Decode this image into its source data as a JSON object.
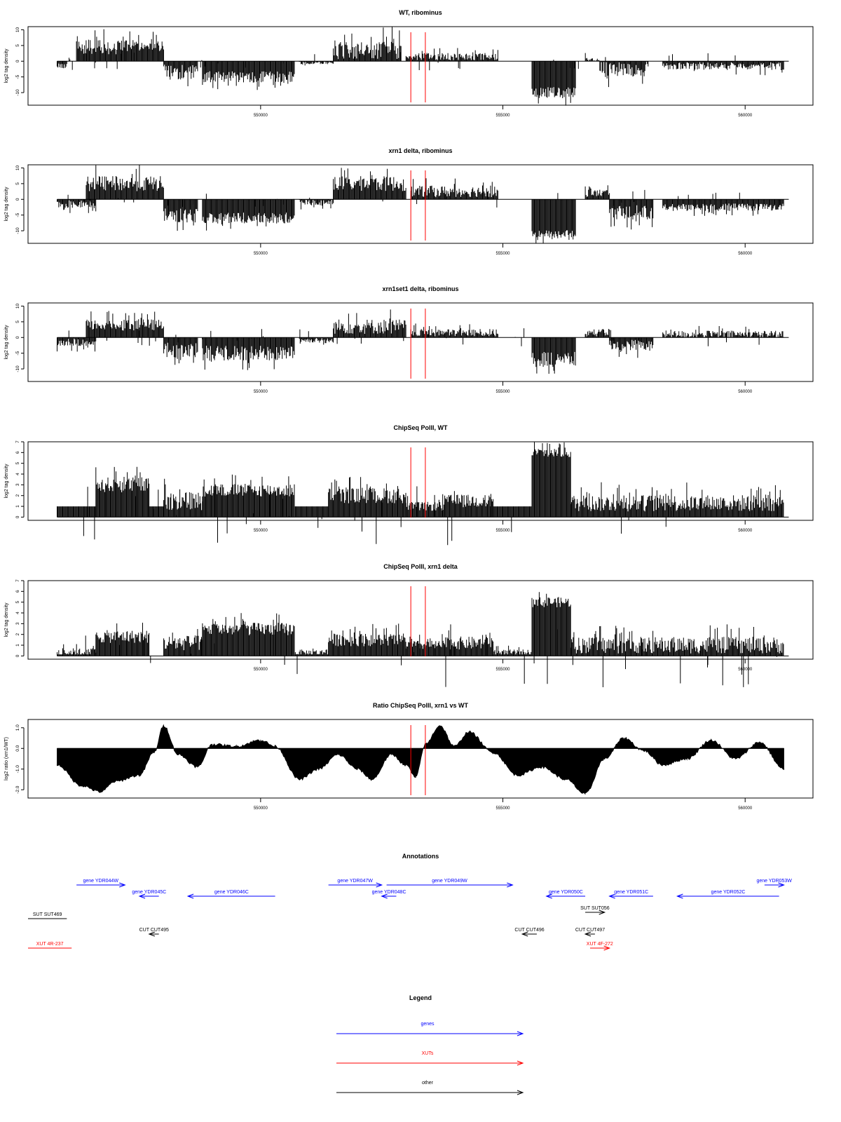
{
  "chart_data": [
    {
      "type": "bar",
      "title": "WT, ribominus",
      "ylabel": "log2 tag density",
      "xlabel": "",
      "xlim": [
        545200,
        561400
      ],
      "ylim": [
        -14,
        11
      ],
      "yticks": [
        -10,
        -5,
        0,
        5,
        10
      ],
      "xticks": [
        550000,
        555000,
        560000
      ],
      "vlines": [
        553100,
        553400
      ],
      "segments": [
        {
          "x": [
            545800,
            546000
          ],
          "sign": -1,
          "level": 1.5,
          "amp": 1.5
        },
        {
          "x": [
            546200,
            547200
          ],
          "sign": 1,
          "level": 4.5,
          "amp": 4
        },
        {
          "x": [
            547200,
            548000
          ],
          "sign": 1,
          "level": 5,
          "amp": 3
        },
        {
          "x": [
            548000,
            548700
          ],
          "sign": -1,
          "level": 3.5,
          "amp": 4
        },
        {
          "x": [
            548800,
            550700
          ],
          "sign": -1,
          "level": 5,
          "amp": 3
        },
        {
          "x": [
            550800,
            551500
          ],
          "sign": -1,
          "level": 0.5,
          "amp": 0.8
        },
        {
          "x": [
            551500,
            552900
          ],
          "sign": 1,
          "level": 3.5,
          "amp": 5
        },
        {
          "x": [
            553000,
            554900
          ],
          "sign": 1,
          "level": 1.5,
          "amp": 2
        },
        {
          "x": [
            555600,
            556500
          ],
          "sign": -1,
          "level": 10,
          "amp": 3
        },
        {
          "x": [
            556700,
            557000
          ],
          "sign": 1,
          "level": 0.5,
          "amp": 1
        },
        {
          "x": [
            557000,
            558000
          ],
          "sign": -1,
          "level": 2.5,
          "amp": 4
        },
        {
          "x": [
            558300,
            560800
          ],
          "sign": -1,
          "level": 1.5,
          "amp": 2
        }
      ]
    },
    {
      "type": "bar",
      "title": "xrn1 delta, ribominus",
      "ylabel": "log2 tag density",
      "xlabel": "",
      "xlim": [
        545200,
        561400
      ],
      "ylim": [
        -14,
        11
      ],
      "yticks": [
        -10,
        -5,
        0,
        5,
        10
      ],
      "xticks": [
        550000,
        555000,
        560000
      ],
      "vlines": [
        553100,
        553400
      ],
      "segments": [
        {
          "x": [
            545800,
            546600
          ],
          "sign": -1,
          "level": 1.5,
          "amp": 2
        },
        {
          "x": [
            546400,
            548000
          ],
          "sign": 1,
          "level": 5,
          "amp": 4
        },
        {
          "x": [
            548000,
            548700
          ],
          "sign": -1,
          "level": 5,
          "amp": 4
        },
        {
          "x": [
            548800,
            550700
          ],
          "sign": -1,
          "level": 6,
          "amp": 3
        },
        {
          "x": [
            550800,
            551500
          ],
          "sign": -1,
          "level": 1,
          "amp": 1.5
        },
        {
          "x": [
            551500,
            553000
          ],
          "sign": 1,
          "level": 5,
          "amp": 4
        },
        {
          "x": [
            553100,
            554900
          ],
          "sign": 1,
          "level": 2.5,
          "amp": 3
        },
        {
          "x": [
            555600,
            556500
          ],
          "sign": -1,
          "level": 11,
          "amp": 2
        },
        {
          "x": [
            556700,
            557200
          ],
          "sign": 1,
          "level": 2,
          "amp": 2
        },
        {
          "x": [
            557200,
            558100
          ],
          "sign": -1,
          "level": 4,
          "amp": 4
        },
        {
          "x": [
            558300,
            560800
          ],
          "sign": -1,
          "level": 2.5,
          "amp": 2
        }
      ]
    },
    {
      "type": "bar",
      "title": "xrn1set1 delta, ribominus",
      "ylabel": "log2 tag density",
      "xlabel": "",
      "xlim": [
        545200,
        561400
      ],
      "ylim": [
        -14,
        11
      ],
      "yticks": [
        -10,
        -5,
        0,
        5,
        10
      ],
      "xticks": [
        550000,
        555000,
        560000
      ],
      "vlines": [
        553100,
        553400
      ],
      "segments": [
        {
          "x": [
            545800,
            546600
          ],
          "sign": -1,
          "level": 1.5,
          "amp": 2
        },
        {
          "x": [
            546400,
            548000
          ],
          "sign": 1,
          "level": 4,
          "amp": 3
        },
        {
          "x": [
            548000,
            548700
          ],
          "sign": -1,
          "level": 4,
          "amp": 4
        },
        {
          "x": [
            548800,
            550700
          ],
          "sign": -1,
          "level": 5,
          "amp": 4
        },
        {
          "x": [
            550800,
            551500
          ],
          "sign": -1,
          "level": 1,
          "amp": 1.5
        },
        {
          "x": [
            551500,
            553000
          ],
          "sign": 1,
          "level": 3.5,
          "amp": 4
        },
        {
          "x": [
            553100,
            554900
          ],
          "sign": 1,
          "level": 1.5,
          "amp": 2
        },
        {
          "x": [
            555600,
            556500
          ],
          "sign": -1,
          "level": 7,
          "amp": 4
        },
        {
          "x": [
            556700,
            557200
          ],
          "sign": 1,
          "level": 1.5,
          "amp": 2
        },
        {
          "x": [
            557200,
            558100
          ],
          "sign": -1,
          "level": 2.5,
          "amp": 3
        },
        {
          "x": [
            558300,
            560800
          ],
          "sign": 1,
          "level": 1,
          "amp": 2
        }
      ]
    },
    {
      "type": "bar",
      "title": "ChipSeq PolII, WT",
      "ylabel": "log2 tag density",
      "xlabel": "",
      "xlim": [
        545200,
        561400
      ],
      "ylim": [
        -0.3,
        7
      ],
      "yticks": [
        0,
        1,
        2,
        3,
        4,
        5,
        6,
        7
      ],
      "xticks": [
        550000,
        555000,
        560000
      ],
      "vlines": [
        553100,
        553400
      ],
      "segments": [
        {
          "x": [
            545800,
            546600
          ],
          "sign": 1,
          "level": 1,
          "amp": 0
        },
        {
          "x": [
            546600,
            547700
          ],
          "sign": 1,
          "level": 3,
          "amp": 1.2
        },
        {
          "x": [
            547700,
            548000
          ],
          "sign": 1,
          "level": 1,
          "amp": 0
        },
        {
          "x": [
            548000,
            548800
          ],
          "sign": 1,
          "level": 1.5,
          "amp": 1.5
        },
        {
          "x": [
            548800,
            550700
          ],
          "sign": 1,
          "level": 2.5,
          "amp": 1
        },
        {
          "x": [
            550700,
            551400
          ],
          "sign": 1,
          "level": 1,
          "amp": 0
        },
        {
          "x": [
            551400,
            553000
          ],
          "sign": 1,
          "level": 2,
          "amp": 1.2
        },
        {
          "x": [
            553000,
            553800
          ],
          "sign": 1,
          "level": 1,
          "amp": 0.7
        },
        {
          "x": [
            553800,
            554800
          ],
          "sign": 1,
          "level": 1.5,
          "amp": 1
        },
        {
          "x": [
            554800,
            555600
          ],
          "sign": 1,
          "level": 1,
          "amp": 0
        },
        {
          "x": [
            555600,
            556400
          ],
          "sign": 1,
          "level": 6,
          "amp": 0.8
        },
        {
          "x": [
            556400,
            560800
          ],
          "sign": 1,
          "level": 1.3,
          "amp": 1.3
        }
      ]
    },
    {
      "type": "bar",
      "title": "ChipSeq PolII, xrn1 delta",
      "ylabel": "log2 tag density",
      "xlabel": "",
      "xlim": [
        545200,
        561400
      ],
      "ylim": [
        -0.3,
        7
      ],
      "yticks": [
        0,
        1,
        2,
        3,
        4,
        5,
        6,
        7
      ],
      "xticks": [
        550000,
        555000,
        560000
      ],
      "vlines": [
        553100,
        553400
      ],
      "segments": [
        {
          "x": [
            545800,
            546600
          ],
          "sign": 1,
          "level": 0.3,
          "amp": 0.7
        },
        {
          "x": [
            546600,
            547700
          ],
          "sign": 1,
          "level": 1.8,
          "amp": 1
        },
        {
          "x": [
            548000,
            548800
          ],
          "sign": 1,
          "level": 1.2,
          "amp": 1.2
        },
        {
          "x": [
            548800,
            550700
          ],
          "sign": 1,
          "level": 2.5,
          "amp": 1
        },
        {
          "x": [
            550700,
            551400
          ],
          "sign": 1,
          "level": 0.3,
          "amp": 0.5
        },
        {
          "x": [
            551400,
            553000
          ],
          "sign": 1,
          "level": 1.5,
          "amp": 1
        },
        {
          "x": [
            553000,
            553800
          ],
          "sign": 1,
          "level": 1,
          "amp": 0.7
        },
        {
          "x": [
            553800,
            554800
          ],
          "sign": 1,
          "level": 1.2,
          "amp": 1
        },
        {
          "x": [
            554800,
            555600
          ],
          "sign": 1,
          "level": 0.3,
          "amp": 0.5
        },
        {
          "x": [
            555600,
            556400
          ],
          "sign": 1,
          "level": 5,
          "amp": 0.8
        },
        {
          "x": [
            556400,
            560800
          ],
          "sign": 1,
          "level": 1,
          "amp": 1.3
        }
      ]
    },
    {
      "type": "area",
      "title": "Ratio ChipSeq PolII, xrn1 vs WT",
      "ylabel": "log2 ratio (xrn1/WT)",
      "xlabel": "",
      "xlim": [
        545200,
        561400
      ],
      "ylim": [
        -2.4,
        1.4
      ],
      "yticks": [
        -2.0,
        -1.0,
        0.0,
        1.0
      ],
      "xticks": [
        550000,
        555000,
        560000
      ],
      "vlines": [
        553100,
        553400
      ],
      "x": [
        545800,
        546300,
        546700,
        547000,
        547500,
        547800,
        548000,
        548300,
        548700,
        549000,
        549500,
        550000,
        550300,
        550800,
        551200,
        551600,
        552000,
        552300,
        552700,
        553000,
        553200,
        553400,
        553700,
        554000,
        554300,
        554800,
        555300,
        555800,
        556300,
        556700,
        557100,
        557500,
        557900,
        558300,
        558800,
        559300,
        559800,
        560300,
        560800
      ],
      "values": [
        -0.8,
        -1.8,
        -2.1,
        -1.6,
        -1.3,
        -0.2,
        1.1,
        -0.3,
        -0.9,
        0.2,
        0.1,
        0.4,
        0.1,
        -1.5,
        -1.0,
        -0.3,
        -1.0,
        -1.5,
        -0.3,
        -0.8,
        -1.4,
        0.2,
        1.1,
        0.1,
        0.8,
        -0.2,
        -1.3,
        -0.9,
        -1.5,
        -2.2,
        -0.5,
        0.5,
        -0.1,
        -0.8,
        -0.5,
        0.4,
        -0.5,
        0.3,
        -1.0
      ]
    },
    {
      "type": "table",
      "title": "Annotations",
      "xlim": [
        545200,
        561400
      ],
      "rows": [
        {
          "label": "gene YDR044W",
          "start": 546200,
          "end": 547200,
          "strand": "+",
          "color": "#0000ff",
          "lane": 0
        },
        {
          "label": "gene YDR045C",
          "start": 547500,
          "end": 547900,
          "strand": "-",
          "color": "#0000ff",
          "lane": 1
        },
        {
          "label": "gene YDR046C",
          "start": 548500,
          "end": 550300,
          "strand": "-",
          "color": "#0000ff",
          "lane": 1
        },
        {
          "label": "gene YDR047W",
          "start": 551400,
          "end": 552500,
          "strand": "+",
          "color": "#0000ff",
          "lane": 0
        },
        {
          "label": "gene YDR048C",
          "start": 552500,
          "end": 552800,
          "strand": "-",
          "color": "#0000ff",
          "lane": 1
        },
        {
          "label": "gene YDR049W",
          "start": 552600,
          "end": 555200,
          "strand": "+",
          "color": "#0000ff",
          "lane": 0
        },
        {
          "label": "gene YDR050C",
          "start": 555900,
          "end": 556700,
          "strand": "-",
          "color": "#0000ff",
          "lane": 1
        },
        {
          "label": "gene YDR051C",
          "start": 557200,
          "end": 558100,
          "strand": "-",
          "color": "#0000ff",
          "lane": 1
        },
        {
          "label": "gene YDR052C",
          "start": 558600,
          "end": 560700,
          "strand": "-",
          "color": "#0000ff",
          "lane": 1
        },
        {
          "label": "gene YDR053W",
          "start": 560400,
          "end": 560800,
          "strand": "+",
          "color": "#0000ff",
          "lane": 0
        },
        {
          "label": "SUT SUT469",
          "start": 545200,
          "end": 546000,
          "strand": "none",
          "color": "#000000",
          "lane": 2
        },
        {
          "label": "SUT SUT056",
          "start": 556700,
          "end": 557100,
          "strand": "+",
          "color": "#000000",
          "lane": 3
        },
        {
          "label": "CUT CUT495",
          "start": 547700,
          "end": 547900,
          "strand": "-",
          "color": "#000000",
          "lane": 4
        },
        {
          "label": "CUT CUT496",
          "start": 555400,
          "end": 555700,
          "strand": "-",
          "color": "#000000",
          "lane": 4
        },
        {
          "label": "CUT CUT497",
          "start": 556700,
          "end": 556900,
          "strand": "-",
          "color": "#000000",
          "lane": 4
        },
        {
          "label": "XUT 4R-237",
          "start": 545200,
          "end": 546100,
          "strand": "none",
          "color": "#ff0000",
          "lane": 5
        },
        {
          "label": "XUT 4F-272",
          "start": 556800,
          "end": 557200,
          "strand": "+",
          "color": "#ff0000",
          "lane": 5
        }
      ]
    },
    {
      "type": "table",
      "title": "Legend",
      "rows": [
        {
          "label": "genes",
          "color": "#0000ff"
        },
        {
          "label": "XUTs",
          "color": "#ff0000"
        },
        {
          "label": "other",
          "color": "#000000"
        }
      ]
    }
  ]
}
